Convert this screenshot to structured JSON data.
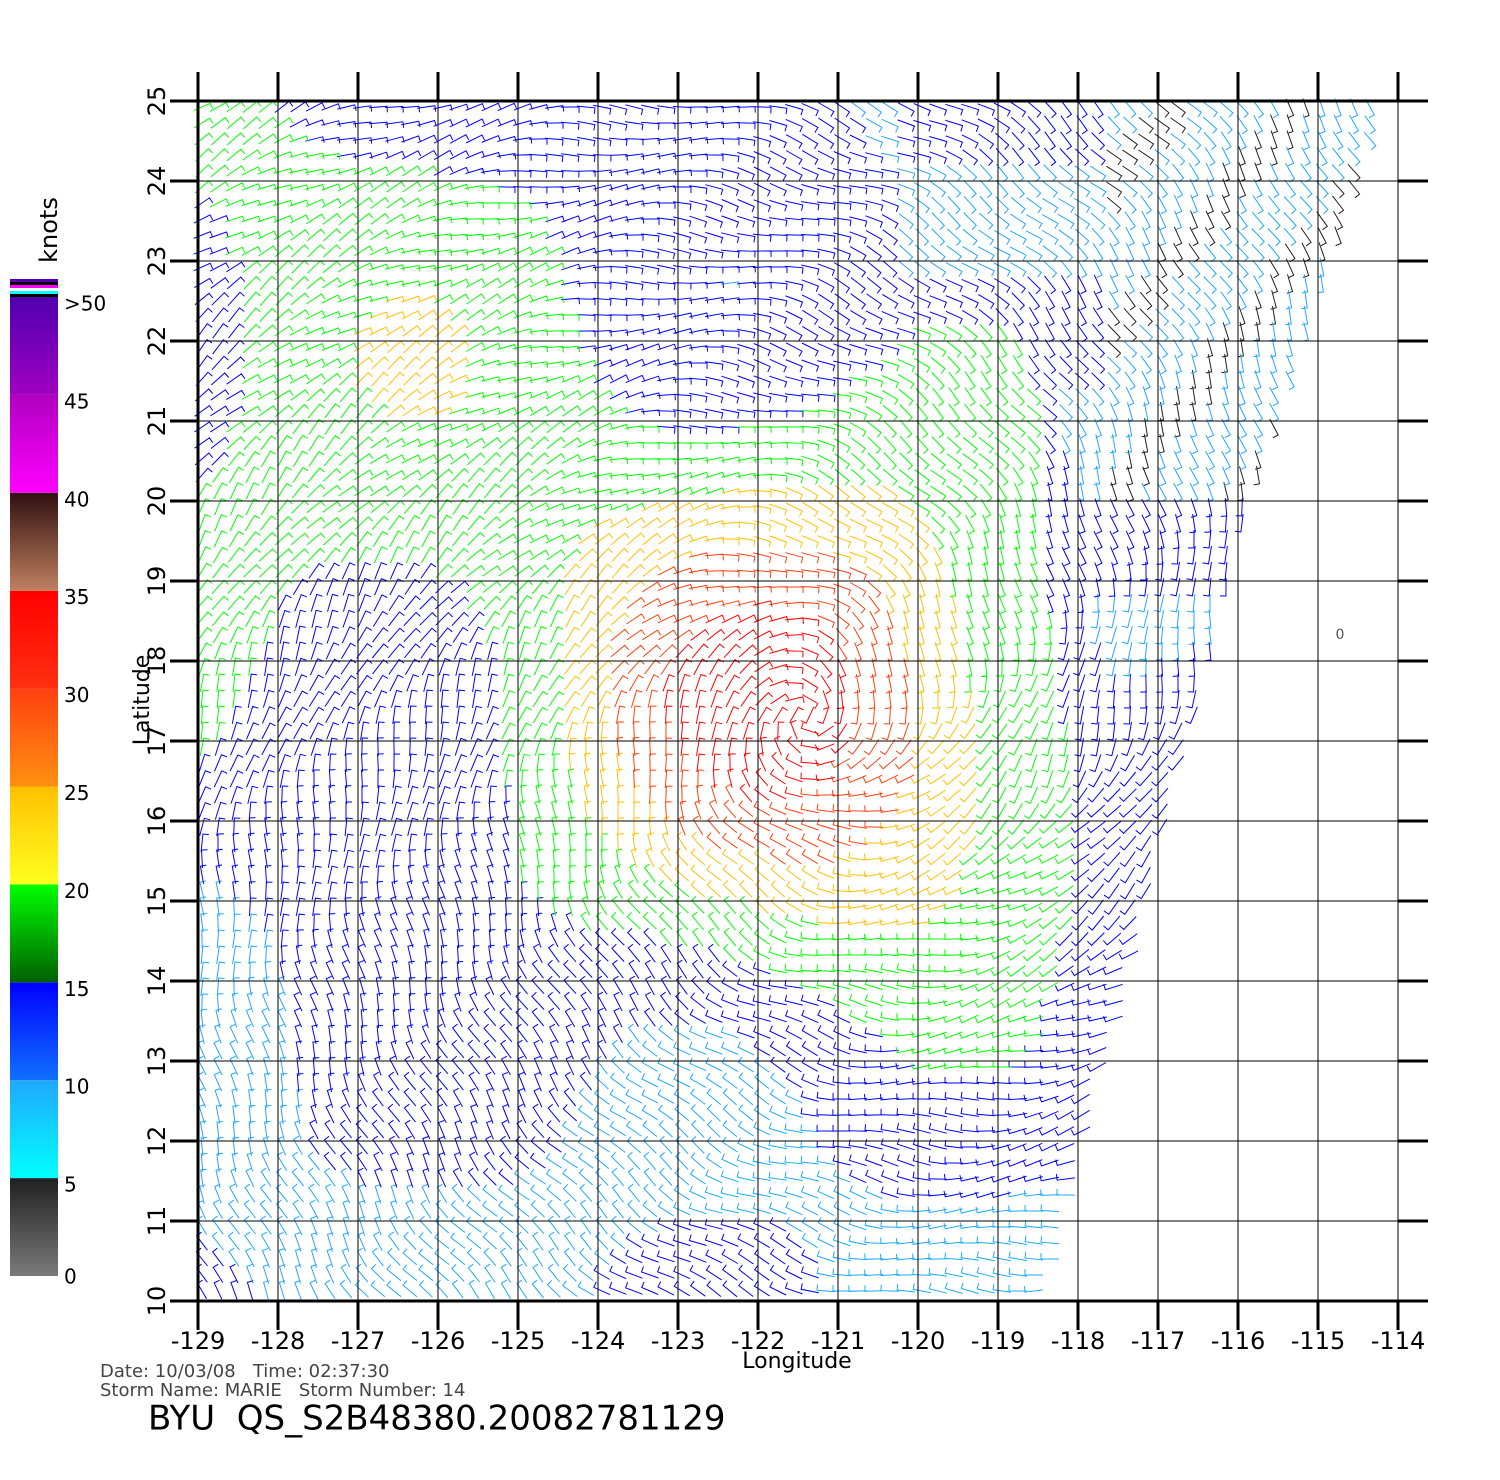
{
  "map": {
    "x_label": "Longitude",
    "y_label": "Latitude",
    "xlim": [
      -129,
      -114
    ],
    "ylim": [
      10,
      25
    ],
    "xticks": [
      -129,
      -128,
      -127,
      -126,
      -125,
      -124,
      -123,
      -122,
      -121,
      -120,
      -119,
      -118,
      -117,
      -116,
      -115,
      -114
    ],
    "yticks": [
      10,
      11,
      12,
      13,
      14,
      15,
      16,
      17,
      18,
      19,
      20,
      21,
      22,
      23,
      24,
      25
    ],
    "grid": true,
    "annotation": "0",
    "colorbar": {
      "label": "knots",
      "ylim": [
        0,
        50
      ],
      "ticks": [
        0,
        5,
        10,
        15,
        20,
        25,
        30,
        35,
        40,
        45,
        {
          "value": 50,
          "label": ">50"
        }
      ],
      "colors": [
        [
          "#7a7a7a",
          "#202020"
        ],
        [
          "#00ffff",
          "#20a8ff"
        ],
        [
          "#1070ff",
          "#0000ff"
        ],
        [
          "#006000",
          "#00ff00"
        ],
        [
          "#ffff20",
          "#ffc000"
        ],
        [
          "#ff9010",
          "#ff4010"
        ],
        [
          "#ff3010",
          "#ff0000"
        ],
        [
          "#c08060",
          "#301010"
        ],
        [
          "#ff00ff",
          "#b000c0"
        ],
        [
          "#a000c0",
          "#5000b0"
        ]
      ]
    },
    "footer": {
      "line1": "Date: 10/03/08   Time: 02:37:30",
      "line2": "Storm Name: MARIE   Storm Number: 14",
      "title": "BYU  QS_S2B48380.20082781129"
    }
  }
}
